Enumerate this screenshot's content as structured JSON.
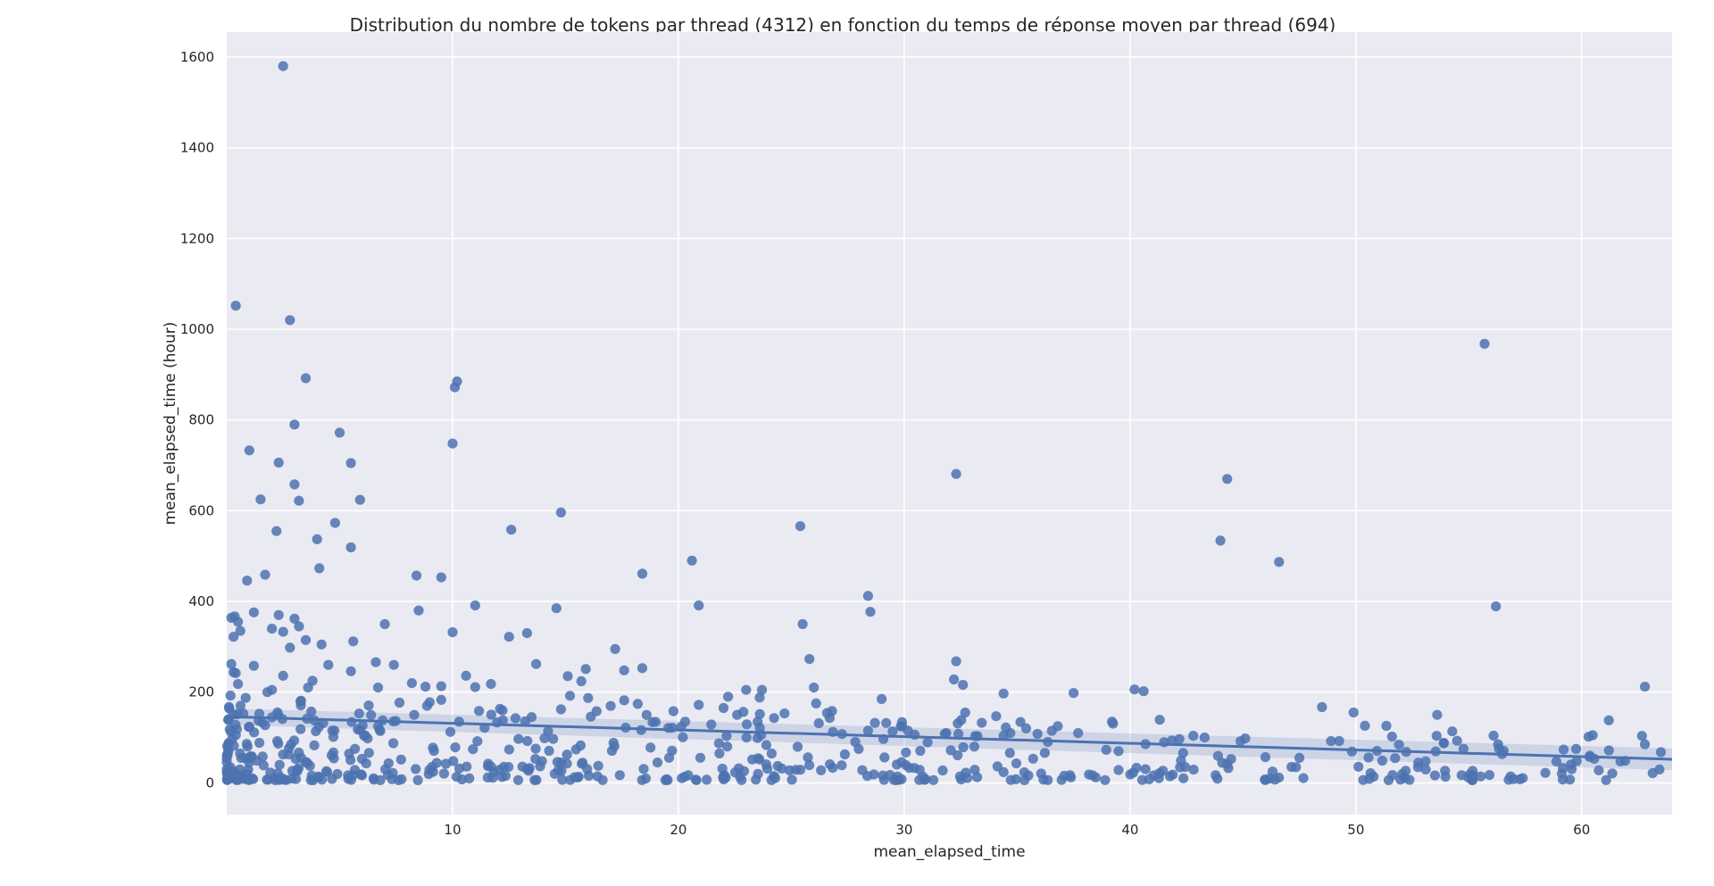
{
  "chart_data": {
    "type": "scatter",
    "title": "Distribution du nombre de tokens par thread (4312) en fonction du temps de réponse moyen par thread (694)",
    "xlabel": "mean_elapsed_time",
    "ylabel": "mean_elapsed_time (hour)",
    "xlim": [
      0,
      64
    ],
    "ylim": [
      -70,
      1655
    ],
    "xticks": [
      10,
      20,
      30,
      40,
      50,
      60
    ],
    "yticks": [
      0,
      200,
      400,
      600,
      800,
      1000,
      1200,
      1400,
      1600
    ],
    "grid": true,
    "colors": {
      "points": "#4c72b0",
      "background": "#eaeaf2",
      "grid": "#ffffff",
      "ci_band": "#4c72b0"
    },
    "regression": {
      "x": [
        0,
        64
      ],
      "y": [
        146,
        52
      ],
      "ci_halfwidth": [
        18,
        24
      ]
    },
    "outliers": [
      [
        2.5,
        1580
      ],
      [
        0.4,
        1052
      ],
      [
        2.8,
        1020
      ],
      [
        3.5,
        892
      ],
      [
        10.2,
        885
      ],
      [
        10.1,
        872
      ],
      [
        55.7,
        968
      ],
      [
        3.0,
        790
      ],
      [
        5.0,
        772
      ],
      [
        10.0,
        748
      ],
      [
        1.0,
        733
      ],
      [
        2.3,
        706
      ],
      [
        5.5,
        705
      ],
      [
        32.3,
        681
      ],
      [
        44.3,
        670
      ],
      [
        3.0,
        658
      ],
      [
        1.5,
        625
      ],
      [
        3.2,
        622
      ],
      [
        5.9,
        624
      ],
      [
        14.8,
        596
      ],
      [
        4.8,
        573
      ],
      [
        25.4,
        566
      ],
      [
        12.6,
        558
      ],
      [
        2.2,
        555
      ],
      [
        4.0,
        537
      ],
      [
        44.0,
        534
      ],
      [
        5.5,
        519
      ],
      [
        20.6,
        490
      ],
      [
        46.6,
        487
      ],
      [
        4.1,
        473
      ],
      [
        18.4,
        461
      ],
      [
        1.7,
        459
      ],
      [
        8.4,
        457
      ],
      [
        9.5,
        453
      ],
      [
        0.9,
        446
      ],
      [
        28.4,
        412
      ],
      [
        11.0,
        391
      ],
      [
        20.9,
        391
      ],
      [
        56.2,
        389
      ],
      [
        14.6,
        385
      ],
      [
        8.5,
        380
      ],
      [
        28.5,
        377
      ],
      [
        1.2,
        376
      ],
      [
        2.3,
        370
      ],
      [
        0.2,
        364
      ],
      [
        0.35,
        367
      ],
      [
        3.0,
        362
      ],
      [
        0.5,
        355
      ],
      [
        25.5,
        350
      ],
      [
        7.0,
        350
      ],
      [
        3.2,
        345
      ],
      [
        2.0,
        340
      ],
      [
        0.6,
        335
      ],
      [
        2.5,
        333
      ],
      [
        10.0,
        332
      ],
      [
        13.3,
        330
      ],
      [
        12.5,
        322
      ],
      [
        0.3,
        322
      ],
      [
        3.5,
        315
      ],
      [
        5.6,
        312
      ],
      [
        4.2,
        305
      ],
      [
        2.8,
        298
      ],
      [
        17.2,
        295
      ],
      [
        32.3,
        268
      ],
      [
        6.6,
        266
      ],
      [
        25.8,
        273
      ],
      [
        13.7,
        262
      ],
      [
        4.5,
        260
      ],
      [
        7.4,
        260
      ],
      [
        0.2,
        262
      ],
      [
        1.2,
        258
      ],
      [
        18.4,
        253
      ],
      [
        15.9,
        251
      ],
      [
        17.6,
        248
      ],
      [
        5.5,
        246
      ],
      [
        0.3,
        244
      ],
      [
        0.4,
        242
      ],
      [
        15.1,
        235
      ],
      [
        10.6,
        236
      ],
      [
        32.2,
        228
      ],
      [
        3.8,
        225
      ],
      [
        2.5,
        236
      ],
      [
        0.5,
        218
      ],
      [
        15.7,
        224
      ],
      [
        62.8,
        212
      ],
      [
        8.2,
        220
      ],
      [
        9.5,
        213
      ],
      [
        11.0,
        211
      ],
      [
        40.2,
        206
      ],
      [
        40.6,
        202
      ],
      [
        37.5,
        198
      ],
      [
        34.4,
        197
      ],
      [
        2.0,
        205
      ],
      [
        23.0,
        205
      ],
      [
        23.7,
        205
      ],
      [
        26.0,
        210
      ],
      [
        3.6,
        210
      ],
      [
        6.7,
        210
      ],
      [
        8.8,
        212
      ],
      [
        11.7,
        218
      ],
      [
        32.6,
        216
      ],
      [
        29.0,
        185
      ],
      [
        15.2,
        192
      ],
      [
        16.0,
        187
      ],
      [
        23.6,
        188
      ],
      [
        1.8,
        200
      ],
      [
        22.2,
        190
      ],
      [
        17.6,
        182
      ],
      [
        9.5,
        183
      ],
      [
        18.2,
        174
      ],
      [
        26.1,
        175
      ],
      [
        20.9,
        172
      ],
      [
        48.5,
        167
      ],
      [
        22.0,
        165
      ],
      [
        12.1,
        163
      ],
      [
        14.8,
        162
      ],
      [
        32.7,
        155
      ],
      [
        49.9,
        155
      ],
      [
        26.7,
        143
      ],
      [
        61.2,
        138
      ],
      [
        53.6,
        150
      ],
      [
        39.2,
        135
      ],
      [
        8.3,
        150
      ],
      [
        13.5,
        145
      ],
      [
        20.3,
        135
      ],
      [
        22.6,
        150
      ],
      [
        50.4,
        126
      ],
      [
        24.7,
        153
      ],
      [
        36.8,
        125
      ],
      [
        34.5,
        122
      ],
      [
        35.4,
        120
      ],
      [
        35.9,
        108
      ],
      [
        28.4,
        115
      ],
      [
        31.8,
        108
      ],
      [
        32.4,
        108
      ],
      [
        34.7,
        110
      ],
      [
        43.3,
        100
      ],
      [
        45.1,
        98
      ],
      [
        51.6,
        102
      ],
      [
        56.3,
        85
      ],
      [
        62.8,
        85
      ],
      [
        48.9,
        92
      ],
      [
        44.3,
        42
      ],
      [
        47.5,
        55
      ]
    ],
    "cluster": {
      "count": 560
    }
  }
}
